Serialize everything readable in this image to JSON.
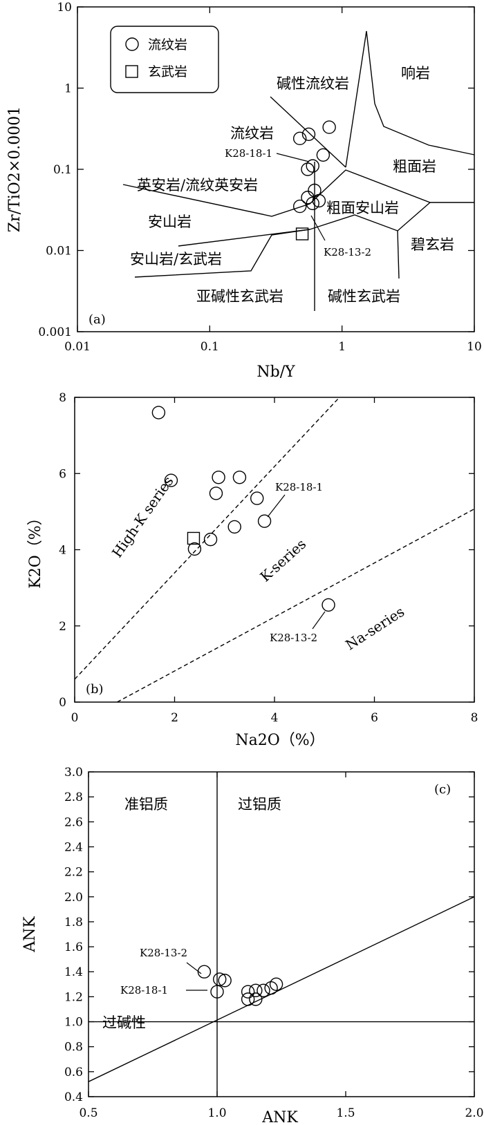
{
  "chart_data": [
    {
      "type": "scatter",
      "panel": "(a)",
      "xlabel": "Nb/Y",
      "ylabel": "Zr/TiO2×0.0001",
      "xscale": "log",
      "yscale": "log",
      "xlim": [
        0.01,
        10
      ],
      "ylim": [
        0.001,
        10
      ],
      "xticks": [
        "0.01",
        "0.1",
        "1",
        "10"
      ],
      "yticks": [
        "0.001",
        "0.01",
        "0.1",
        "1",
        "10"
      ],
      "legend": {
        "position": "top-left",
        "entries": [
          {
            "label": "流纹岩",
            "marker": "circle"
          },
          {
            "label": "玄武岩",
            "marker": "square"
          }
        ]
      },
      "series": [
        {
          "name": "流纹岩",
          "marker": "circle",
          "points": [
            [
              0.8,
              0.33
            ],
            [
              0.56,
              0.27
            ],
            [
              0.48,
              0.24
            ],
            [
              0.72,
              0.15
            ],
            [
              0.6,
              0.11
            ],
            [
              0.55,
              0.1
            ],
            [
              0.62,
              0.055
            ],
            [
              0.55,
              0.045
            ],
            [
              0.67,
              0.041
            ],
            [
              0.6,
              0.038
            ],
            [
              0.48,
              0.035
            ]
          ]
        },
        {
          "name": "玄武岩",
          "marker": "square",
          "points": [
            [
              0.5,
              0.016
            ]
          ]
        }
      ],
      "field_labels": [
        "响岩",
        "碱性流纹岩",
        "流纹岩",
        "粗面岩",
        "英安岩/流纹英安岩",
        "粗面安山岩",
        "安山岩",
        "碧玄岩",
        "安山岩/玄武岩",
        "亚碱性玄武岩",
        "碱性玄武岩"
      ],
      "annotations": [
        "K28-18-1",
        "K28-13-2"
      ]
    },
    {
      "type": "scatter",
      "panel": "(b)",
      "xlabel": "Na2O（%）",
      "ylabel": "K2O（%）",
      "xlim": [
        0,
        8
      ],
      "ylim": [
        0,
        8
      ],
      "xticks": [
        "0",
        "2",
        "4",
        "6",
        "8"
      ],
      "yticks": [
        "0",
        "2",
        "4",
        "6",
        "8"
      ],
      "series": [
        {
          "marker": "circle",
          "points": [
            [
              1.68,
              7.6
            ],
            [
              1.93,
              5.82
            ],
            [
              2.88,
              5.9
            ],
            [
              3.3,
              5.9
            ],
            [
              2.83,
              5.48
            ],
            [
              3.65,
              5.35
            ],
            [
              3.8,
              4.75
            ],
            [
              3.2,
              4.6
            ],
            [
              2.72,
              4.27
            ],
            [
              2.4,
              4.02
            ],
            [
              5.08,
              2.55
            ]
          ]
        },
        {
          "marker": "square",
          "points": [
            [
              2.38,
              4.3
            ]
          ]
        }
      ],
      "boundary_lines": [
        {
          "x": [
            0,
            5.3
          ],
          "y": [
            0.6,
            8.0
          ]
        },
        {
          "x": [
            0.85,
            8.0
          ],
          "y": [
            0,
            5.07
          ]
        }
      ],
      "field_labels": [
        "High-K  series",
        "K-series",
        "Na-series"
      ],
      "annotations": [
        "K28-18-1",
        "K28-13-2"
      ]
    },
    {
      "type": "scatter",
      "panel": "(c)",
      "xlabel": "ANK",
      "ylabel": "ANK",
      "xlim": [
        0.5,
        2.0
      ],
      "ylim": [
        0.4,
        3.0
      ],
      "xticks": [
        "0.5",
        "1.0",
        "1.5",
        "2.0"
      ],
      "yticks": [
        "0.4",
        "0.6",
        "0.8",
        "1.0",
        "1.2",
        "1.4",
        "1.6",
        "1.8",
        "2.0",
        "2.2",
        "2.4",
        "2.6",
        "2.8",
        "3.0"
      ],
      "series": [
        {
          "marker": "circle",
          "points": [
            [
              0.95,
              1.4
            ],
            [
              1.01,
              1.34
            ],
            [
              1.03,
              1.33
            ],
            [
              1.0,
              1.24
            ],
            [
              1.12,
              1.24
            ],
            [
              1.15,
              1.25
            ],
            [
              1.18,
              1.25
            ],
            [
              1.21,
              1.27
            ],
            [
              1.23,
              1.3
            ],
            [
              1.12,
              1.18
            ],
            [
              1.15,
              1.18
            ]
          ]
        }
      ],
      "boundary_lines": [
        {
          "x": [
            1.0,
            1.0
          ],
          "y": [
            0.4,
            3.0
          ]
        },
        {
          "x": [
            0.5,
            2.0
          ],
          "y": [
            1.0,
            1.0
          ]
        },
        {
          "x": [
            0.5,
            2.0
          ],
          "y": [
            0.52,
            2.0
          ]
        }
      ],
      "field_labels": [
        "准铝质",
        "过铝质",
        "过碱性"
      ],
      "annotations": [
        "K28-13-2",
        "K28-18-1"
      ]
    }
  ]
}
